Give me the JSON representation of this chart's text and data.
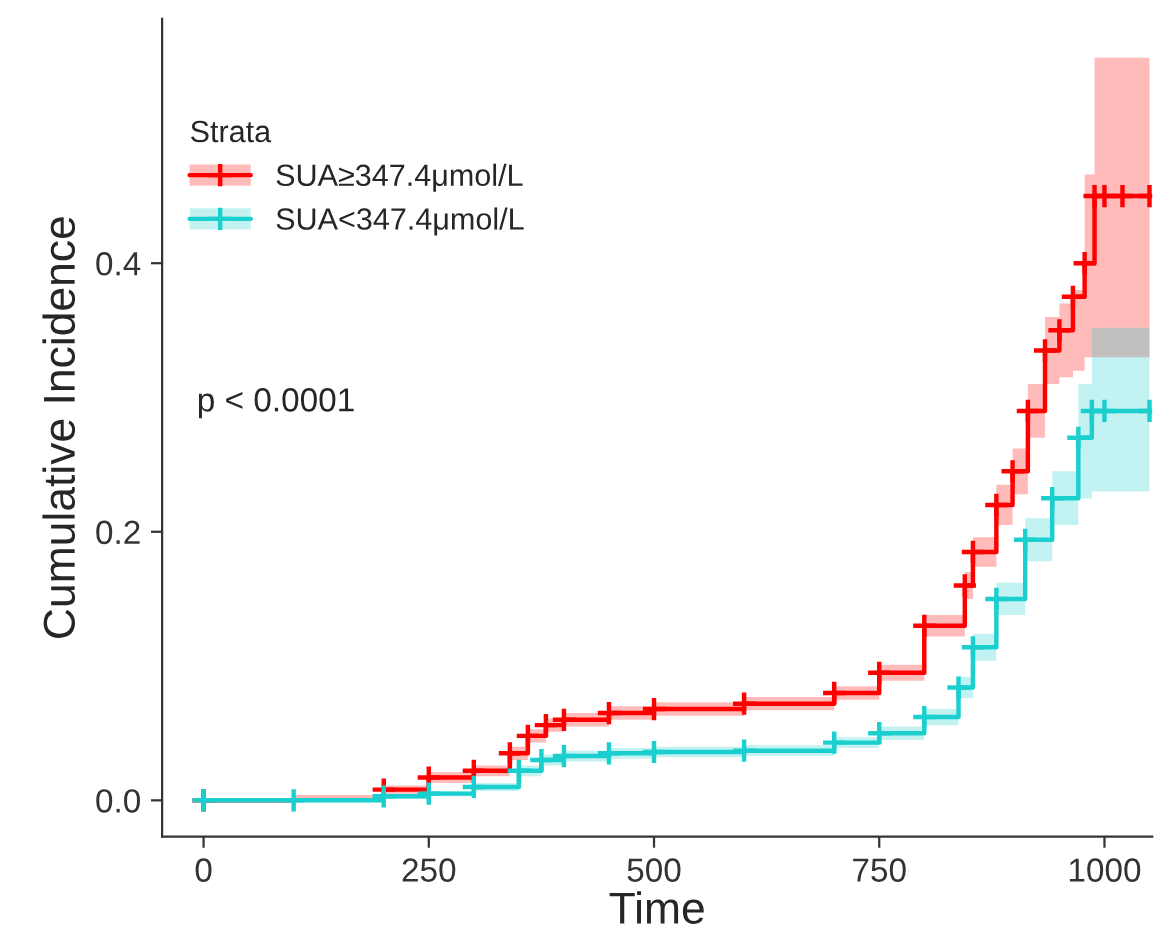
{
  "chart_data": {
    "type": "step",
    "xlabel": "Time",
    "ylabel": "Cumulative Incidence",
    "legend_title": "Strata",
    "annotations": [
      "p < 0.0001"
    ],
    "xlim": [
      -46,
      1053
    ],
    "xticks": [
      0,
      250,
      500,
      750,
      1000
    ],
    "ylim": [
      -0.027,
      0.582
    ],
    "yticks": [
      {
        "value": 0,
        "label": "0.0"
      },
      {
        "value": 0.2,
        "label": "0.2"
      },
      {
        "value": 0.4,
        "label": "0.4"
      }
    ],
    "grid": false,
    "legend": "top left",
    "marker": "cross",
    "line_style": "solid",
    "series": [
      {
        "name": "SUA≥347.4μmol/L",
        "color": "#ff0000",
        "x": [
          0,
          100,
          200,
          250,
          300,
          340,
          360,
          380,
          400,
          450,
          500,
          600,
          700,
          750,
          800,
          845,
          854,
          880,
          898,
          915,
          934,
          950,
          965,
          978,
          989,
          1000,
          1020,
          1050
        ],
        "values": [
          0,
          null,
          0.008,
          0.017,
          0.022,
          0.035,
          0.048,
          0.056,
          0.06,
          0.065,
          0.068,
          0.072,
          0.08,
          0.095,
          0.13,
          0.16,
          0.185,
          0.22,
          0.245,
          0.29,
          0.335,
          0.35,
          0.375,
          0.4,
          0.45,
          0.45,
          0.45,
          0.45
        ],
        "lower": [
          0,
          0,
          0.005,
          0.013,
          0.018,
          0.03,
          0.043,
          0.051,
          0.055,
          0.06,
          0.063,
          0.067,
          0.075,
          0.089,
          0.122,
          0.15,
          0.174,
          0.205,
          0.228,
          0.27,
          0.31,
          0.315,
          0.32,
          0.33,
          0.33,
          0.33,
          0.33,
          0.33
        ],
        "upper": [
          0,
          0.004,
          0.011,
          0.021,
          0.026,
          0.04,
          0.053,
          0.061,
          0.065,
          0.07,
          0.073,
          0.077,
          0.085,
          0.101,
          0.138,
          0.17,
          0.196,
          0.235,
          0.262,
          0.31,
          0.36,
          0.37,
          0.38,
          0.466,
          0.553,
          0.553,
          0.553,
          0.553
        ]
      },
      {
        "name": "SUA<347.4μmol/L",
        "color": "#1ccfcf",
        "x": [
          0,
          100,
          200,
          250,
          300,
          350,
          375,
          400,
          450,
          500,
          600,
          700,
          750,
          800,
          838,
          854,
          880,
          912,
          942,
          971,
          986,
          1000,
          1050
        ],
        "values": [
          0,
          0,
          0.003,
          0.005,
          0.01,
          0.022,
          0.03,
          0.033,
          0.035,
          0.036,
          0.037,
          0.043,
          0.05,
          0.062,
          0.084,
          0.114,
          0.15,
          0.194,
          0.225,
          0.27,
          0.29,
          0.29,
          0.29
        ],
        "lower": [
          0,
          0,
          0.001,
          0.003,
          0.007,
          0.018,
          0.026,
          0.029,
          0.031,
          0.032,
          0.033,
          0.039,
          0.045,
          0.056,
          0.076,
          0.104,
          0.138,
          0.178,
          0.205,
          0.225,
          0.23,
          0.23,
          0.23
        ],
        "upper": [
          0,
          0.001,
          0.005,
          0.007,
          0.013,
          0.026,
          0.034,
          0.037,
          0.039,
          0.04,
          0.041,
          0.047,
          0.055,
          0.068,
          0.092,
          0.124,
          0.162,
          0.21,
          0.245,
          0.31,
          0.352,
          0.352,
          0.352
        ]
      }
    ]
  }
}
